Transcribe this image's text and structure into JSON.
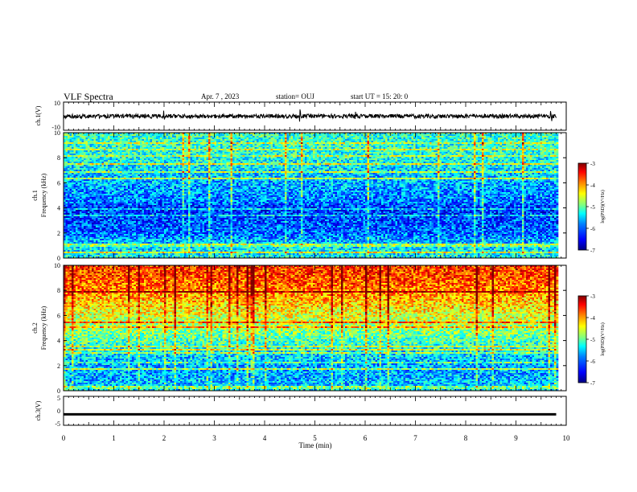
{
  "header": {
    "title": "VLF Spectra",
    "date": "Apr. 7  , 2023",
    "station": "station= OUJ",
    "start": "start  UT  =    15: 20: 0"
  },
  "chart_data": [
    {
      "type": "line",
      "name": "ch1-waveform",
      "ylabel": "ch.1(V)",
      "ylim": [
        -10,
        10
      ],
      "yticks": [
        "10",
        "-10"
      ],
      "baseline": 0,
      "spike_times_min": [
        2.0,
        4.7,
        5.8,
        9.7
      ]
    },
    {
      "type": "heatmap",
      "name": "ch1-spectrogram",
      "ylabel": [
        "ch.1",
        "Frequency  (kHz)"
      ],
      "ylim": [
        0,
        10
      ],
      "yticks": [
        "0",
        "2",
        "4",
        "6",
        "8",
        "10"
      ],
      "colorbar": {
        "label": "log(PSD)(V²/Hz)",
        "range": [
          -7,
          -3
        ],
        "ticks": [
          "-3",
          "-4",
          "-5",
          "-6",
          "-7"
        ]
      },
      "intensity_profile_by_freq_kHz": [
        [
          0,
          -5.5
        ],
        [
          1,
          -5.6
        ],
        [
          2,
          -6.1
        ],
        [
          3,
          -6.2
        ],
        [
          4,
          -6.3
        ],
        [
          4.5,
          -6.0
        ],
        [
          6,
          -5.8
        ],
        [
          8,
          -5.4
        ],
        [
          10,
          -5.3
        ]
      ]
    },
    {
      "type": "heatmap",
      "name": "ch2-spectrogram",
      "ylabel": [
        "ch.2",
        "Frequency  (kHz)"
      ],
      "ylim": [
        0,
        10
      ],
      "yticks": [
        "0",
        "2",
        "4",
        "6",
        "8",
        "10"
      ],
      "colorbar": {
        "label": "log(PSD)(V²/Hz)",
        "range": [
          -7,
          -3
        ],
        "ticks": [
          "-3",
          "-4",
          "-5",
          "-6",
          "-7"
        ]
      },
      "intensity_profile_by_freq_kHz": [
        [
          0,
          -5.6
        ],
        [
          1,
          -5.8
        ],
        [
          2,
          -5.8
        ],
        [
          3,
          -5.6
        ],
        [
          4,
          -5.2
        ],
        [
          5,
          -4.9
        ],
        [
          6,
          -4.6
        ],
        [
          7,
          -4.3
        ],
        [
          8,
          -4.0
        ],
        [
          9,
          -3.8
        ],
        [
          10,
          -3.7
        ]
      ]
    },
    {
      "type": "line",
      "name": "ch3-waveform",
      "ylabel": "ch.3(V)",
      "ylim": [
        -5,
        5
      ],
      "yticks": [
        "5",
        "0",
        "-5"
      ],
      "baseline": -1.2
    }
  ],
  "x_axis": {
    "label": "Time  (min)",
    "range": [
      0,
      10
    ],
    "ticks": [
      "0",
      "1",
      "2",
      "3",
      "4",
      "5",
      "6",
      "7",
      "8",
      "9",
      "10"
    ],
    "data_end_min": 9.8
  },
  "colors": {
    "colormap": [
      "#00007f",
      "#0000ff",
      "#0080ff",
      "#00ffff",
      "#80ff80",
      "#ffff00",
      "#ff8000",
      "#ff0000",
      "#7f0000"
    ]
  }
}
